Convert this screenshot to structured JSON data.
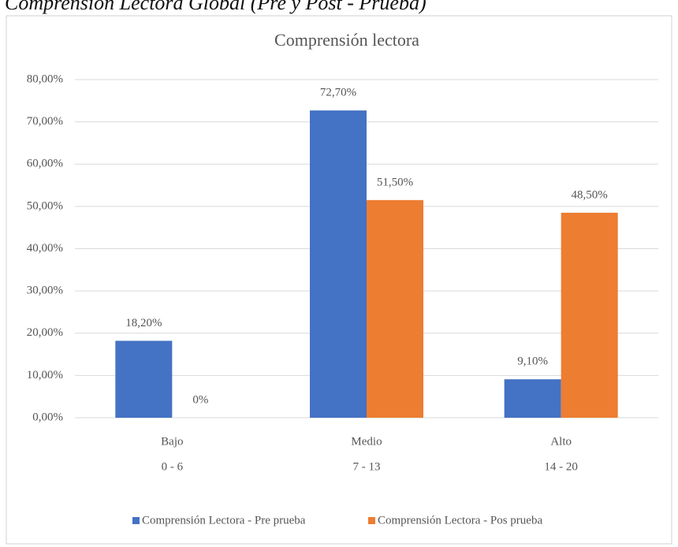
{
  "caption": "Comprensión Lectora Global (Pre y Post - Prueba)",
  "chart_data": {
    "type": "bar",
    "title": "Comprensión lectora",
    "categories": [
      [
        "Bajo",
        "0 - 6"
      ],
      [
        "Medio",
        "7 - 13"
      ],
      [
        "Alto",
        "14 - 20"
      ]
    ],
    "series": [
      {
        "name": "Comprensión Lectora - Pre prueba",
        "color": "#4472c4",
        "values": [
          18.2,
          72.7,
          9.1
        ],
        "value_labels": [
          "18,20%",
          "72,70%",
          "9,10%"
        ]
      },
      {
        "name": "Comprensión Lectora - Pos prueba",
        "color": "#ed7d31",
        "values": [
          0,
          51.5,
          48.5
        ],
        "value_labels": [
          "0%",
          "51,50%",
          "48,50%"
        ]
      }
    ],
    "ylim": [
      0,
      80
    ],
    "yticks": [
      {
        "value": 0,
        "label": "0,00%"
      },
      {
        "value": 10,
        "label": "10,00%"
      },
      {
        "value": 20,
        "label": "20,00%"
      },
      {
        "value": 30,
        "label": "30,00%"
      },
      {
        "value": 40,
        "label": "40,00%"
      },
      {
        "value": 50,
        "label": "50,00%"
      },
      {
        "value": 60,
        "label": "60,00%"
      },
      {
        "value": 70,
        "label": "70,00%"
      },
      {
        "value": 80,
        "label": "80,00%"
      }
    ],
    "grid": true,
    "legend": "bottom"
  }
}
